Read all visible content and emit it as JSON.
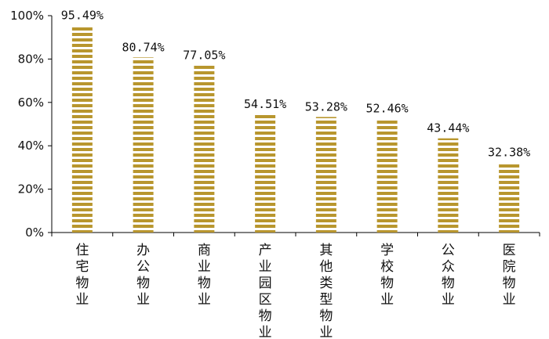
{
  "chart_data": {
    "type": "bar",
    "title": "",
    "xlabel": "",
    "ylabel": "",
    "categories": [
      "住宅物业",
      "办公物业",
      "商业物业",
      "产业园区物业",
      "其他类型物业",
      "学校物业",
      "公众物业",
      "医院物业"
    ],
    "values": [
      95.49,
      80.74,
      77.05,
      54.51,
      53.28,
      52.46,
      43.44,
      32.38
    ],
    "data_labels": [
      "95.49%",
      "80.74%",
      "77.05%",
      "54.51%",
      "53.28%",
      "52.46%",
      "43.44%",
      "32.38%"
    ],
    "ylim": [
      0,
      100
    ],
    "yticks": [
      0,
      20,
      40,
      60,
      80,
      100
    ],
    "ytick_labels": [
      "0%",
      "20%",
      "40%",
      "60%",
      "80%",
      "100%"
    ],
    "grid": false,
    "legend": "none",
    "bar_pattern": "horizontal-stripes",
    "colors": {
      "bar_stripe": "#B8962E",
      "bar_gap": "#ffffff",
      "axis": "#000000",
      "text": "#111111"
    }
  }
}
